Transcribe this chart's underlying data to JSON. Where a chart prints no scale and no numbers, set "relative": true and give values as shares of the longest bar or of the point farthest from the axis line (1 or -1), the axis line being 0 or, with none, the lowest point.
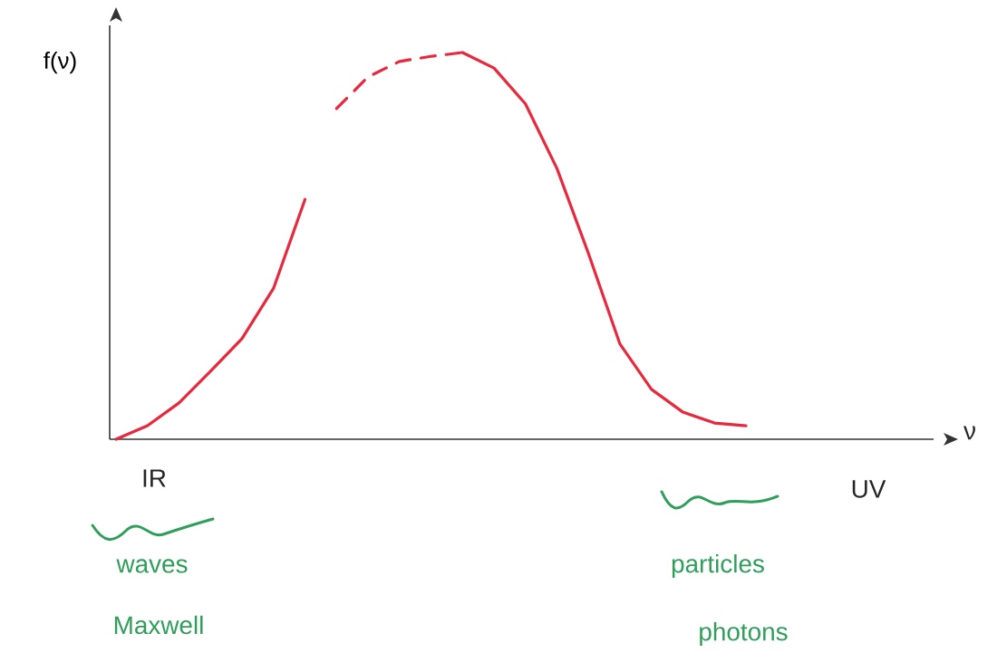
{
  "chart_data": {
    "type": "line",
    "ylabel": "f(ν)",
    "relative": true,
    "marker": "none",
    "categories": [
      null,
      null,
      null,
      null,
      null,
      null,
      null,
      null,
      null,
      null,
      null,
      null,
      null,
      null,
      null,
      null,
      null,
      null,
      null,
      null,
      null
    ],
    "series": [
      {
        "color": "#e8283c",
        "line_style": "solid",
        "values": [
          0,
          0.035,
          0.094,
          0.176,
          0.26,
          0.39,
          0.62,
          null,
          null,
          null,
          null,
          null,
          null,
          null,
          null,
          null,
          null,
          null,
          null,
          null,
          null
        ]
      },
      {
        "color": "#e8283c",
        "line_style": "dashed",
        "values": [
          null,
          null,
          null,
          null,
          null,
          null,
          null,
          0.855,
          0.937,
          0.977,
          0.99,
          1.0,
          null,
          null,
          null,
          null,
          null,
          null,
          null,
          null,
          null
        ]
      },
      {
        "color": "#e8283c",
        "line_style": "solid",
        "values": [
          null,
          null,
          null,
          null,
          null,
          null,
          null,
          null,
          null,
          null,
          null,
          1.0,
          0.96,
          0.867,
          0.7,
          0.48,
          0.246,
          0.129,
          0.07,
          0.042,
          0.035
        ]
      }
    ],
    "annotations": [
      "IR",
      "UV",
      "waves",
      "Maxwell",
      "particles",
      "photons",
      "ν"
    ]
  }
}
